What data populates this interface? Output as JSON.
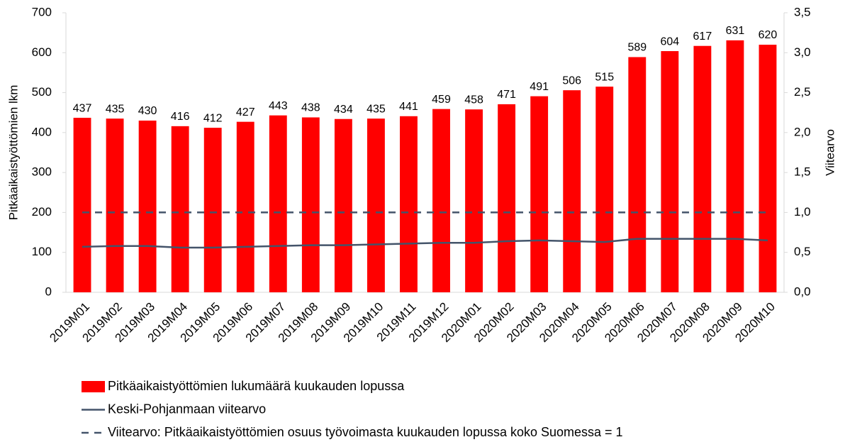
{
  "chart_data": {
    "type": "bar",
    "y_label": "Pitkäaikaistyöttömien lkm",
    "y2_label": "Viitearvo",
    "categories": [
      "2019M01",
      "2019M02",
      "2019M03",
      "2019M04",
      "2019M05",
      "2019M06",
      "2019M07",
      "2019M08",
      "2019M09",
      "2019M10",
      "2019M11",
      "2019M12",
      "2020M01",
      "2020M02",
      "2020M03",
      "2020M04",
      "2020M05",
      "2020M06",
      "2020M07",
      "2020M08",
      "2020M09",
      "2020M10"
    ],
    "series": [
      {
        "name": "Pitkäaikaistyöttömien lukumäärä kuukauden lopussa",
        "color": "#ff0000",
        "type": "bar",
        "values": [
          437,
          435,
          430,
          416,
          412,
          427,
          443,
          438,
          434,
          435,
          441,
          459,
          458,
          471,
          491,
          506,
          515,
          589,
          604,
          617,
          631,
          620
        ]
      },
      {
        "name": "Keski-Pohjanmaan viitearvo",
        "color": "#44546a",
        "type": "line",
        "axis": "y2",
        "values": [
          0.57,
          0.58,
          0.58,
          0.56,
          0.56,
          0.57,
          0.58,
          0.59,
          0.59,
          0.6,
          0.61,
          0.62,
          0.62,
          0.64,
          0.65,
          0.64,
          0.63,
          0.67,
          0.67,
          0.67,
          0.67,
          0.65
        ]
      },
      {
        "name": "Viitearvo: Pitkäaikaistyöttömien osuus työvoimasta kuukauden lopussa koko Suomessa = 1",
        "color": "#44546a",
        "type": "line",
        "axis": "y2",
        "dash": true,
        "values": [
          1,
          1,
          1,
          1,
          1,
          1,
          1,
          1,
          1,
          1,
          1,
          1,
          1,
          1,
          1,
          1,
          1,
          1,
          1,
          1,
          1,
          1
        ]
      }
    ],
    "ylim": [
      0,
      700
    ],
    "yticks": [
      0,
      100,
      200,
      300,
      400,
      500,
      600,
      700
    ],
    "y2lim": [
      0,
      3.5
    ],
    "y2ticks": [
      {
        "value": 0,
        "label": "0,0"
      },
      {
        "value": 0.5,
        "label": "0,5"
      },
      {
        "value": 1,
        "label": "1,0"
      },
      {
        "value": 1.5,
        "label": "1,5"
      },
      {
        "value": 2,
        "label": "2,0"
      },
      {
        "value": 2.5,
        "label": "2,5"
      },
      {
        "value": 3,
        "label": "3,0"
      },
      {
        "value": 3.5,
        "label": "3,5"
      }
    ],
    "grid": false,
    "legend": "bottom"
  }
}
